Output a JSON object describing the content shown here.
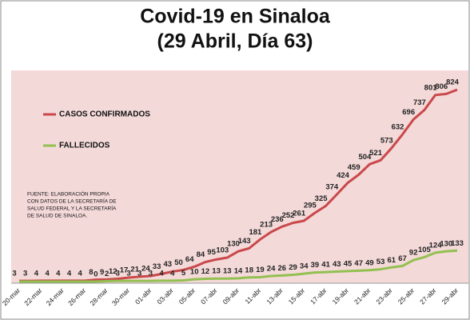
{
  "chart_data": {
    "type": "line",
    "title": [
      "Covid-19 en Sinaloa",
      "(29 Abril, Día 63)"
    ],
    "note": [
      "FUENTE: ELABORACIÓN PROPIA",
      "CON DATOS DE LA SECRETARÍA DE",
      "SALUD FEDERAL Y LA SECRETARÍA",
      "DE SALUD DE SINALOA."
    ],
    "categories": [
      "20-mar",
      null,
      "22-mar",
      null,
      "24-mar",
      null,
      "26-mar",
      null,
      "28-mar",
      null,
      "30-mar",
      null,
      "01-abr",
      null,
      "03-abr",
      null,
      "05-abr",
      null,
      "07-abr",
      null,
      "09-abr",
      null,
      "11-abr",
      null,
      "13-abr",
      null,
      "15-abr",
      null,
      "17-abr",
      null,
      "19-abr",
      null,
      "21-abr",
      null,
      "23-abr",
      null,
      "25-abr",
      null,
      "27-abr",
      null,
      "29-abr"
    ],
    "series": [
      {
        "name": "CASOS CONFIRMADOS",
        "color": "#c9484a",
        "values": [
          3,
          3,
          4,
          4,
          4,
          4,
          4,
          8,
          9,
          12,
          17,
          21,
          24,
          33,
          43,
          50,
          64,
          84,
          95,
          103,
          130,
          143,
          181,
          213,
          236,
          252,
          261,
          295,
          325,
          374,
          424,
          459,
          504,
          521,
          573,
          632,
          696,
          737,
          801,
          806,
          824
        ]
      },
      {
        "name": "FALLECIDOS",
        "color": "#92c050",
        "values": [
          0,
          0,
          0,
          0,
          0,
          0,
          0,
          0,
          2,
          3,
          3,
          3,
          3,
          4,
          4,
          5,
          10,
          12,
          13,
          13,
          14,
          18,
          19,
          24,
          26,
          29,
          34,
          39,
          41,
          43,
          45,
          47,
          49,
          53,
          61,
          67,
          92,
          105,
          124,
          130,
          133
        ],
        "value_labels": [
          null,
          null,
          null,
          null,
          null,
          null,
          null,
          "0",
          "2",
          "3",
          "3",
          "3",
          "3",
          "4",
          "4",
          "5",
          "10",
          "12",
          "13",
          "13",
          "14",
          "18",
          "19",
          "24",
          "26",
          "29",
          "34",
          "39",
          "41",
          "43",
          "45",
          "47",
          "49",
          "53",
          "61",
          "67",
          "92",
          "105",
          "124",
          "130",
          "133"
        ]
      }
    ],
    "ylim": [
      0,
      900
    ]
  }
}
